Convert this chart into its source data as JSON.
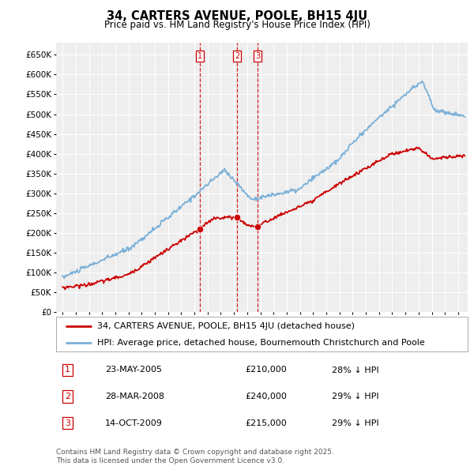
{
  "title": "34, CARTERS AVENUE, POOLE, BH15 4JU",
  "subtitle": "Price paid vs. HM Land Registry's House Price Index (HPI)",
  "legend_line1": "34, CARTERS AVENUE, POOLE, BH15 4JU (detached house)",
  "legend_line2": "HPI: Average price, detached house, Bournemouth Christchurch and Poole",
  "footer": "Contains HM Land Registry data © Crown copyright and database right 2025.\nThis data is licensed under the Open Government Licence v3.0.",
  "transactions": [
    {
      "num": 1,
      "date": "23-MAY-2005",
      "price": 210000,
      "hpi_note": "28% ↓ HPI",
      "x_year": 2005.39
    },
    {
      "num": 2,
      "date": "28-MAR-2008",
      "price": 240000,
      "hpi_note": "29% ↓ HPI",
      "x_year": 2008.24
    },
    {
      "num": 3,
      "date": "14-OCT-2009",
      "price": 215000,
      "hpi_note": "29% ↓ HPI",
      "x_year": 2009.79
    }
  ],
  "hpi_color": "#7ab0d8",
  "price_color": "#cc0000",
  "vline_color": "#cc0000",
  "dot_color": "#cc0000",
  "marker_border_color": "#cc0000",
  "ylim": [
    0,
    680000
  ],
  "yticks": [
    0,
    50000,
    100000,
    150000,
    200000,
    250000,
    300000,
    350000,
    400000,
    450000,
    500000,
    550000,
    600000,
    650000
  ],
  "xlim_start": 1994.5,
  "xlim_end": 2025.7,
  "background_color": "#ffffff",
  "plot_bg_color": "#eeeeee",
  "grid_color": "#ffffff",
  "title_fontsize": 10.5,
  "subtitle_fontsize": 8.5,
  "tick_fontsize": 7.5,
  "legend_fontsize": 8,
  "table_fontsize": 8,
  "footer_fontsize": 6.5
}
